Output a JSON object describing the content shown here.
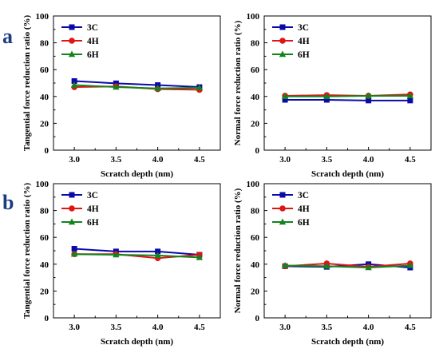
{
  "figure": {
    "rows": [
      {
        "label": "a"
      },
      {
        "label": "b"
      }
    ]
  },
  "chart_data": [
    {
      "type": "line",
      "panel": "a",
      "position": "left",
      "x": [
        3.0,
        3.5,
        4.0,
        4.5
      ],
      "x_ticks": [
        "3.0",
        "3.5",
        "4.0",
        "4.5"
      ],
      "y_ticks": [
        "0",
        "20",
        "40",
        "60",
        "80",
        "100"
      ],
      "xlim": [
        2.75,
        4.75
      ],
      "ylim": [
        0,
        100
      ],
      "xlabel": "Scratch depth (nm)",
      "ylabel": "Tangential force reduction ratio (%)",
      "legend_position": "top-left",
      "grid": false,
      "series": [
        {
          "name": "3C",
          "color": "#0a0aa8",
          "marker": "square",
          "values": [
            51.5,
            49.8,
            48.5,
            47.0
          ]
        },
        {
          "name": "4H",
          "color": "#e01414",
          "marker": "circle",
          "values": [
            47.0,
            47.5,
            45.5,
            45.0
          ]
        },
        {
          "name": "6H",
          "color": "#13841d",
          "marker": "triangle",
          "values": [
            48.5,
            47.0,
            46.0,
            46.5
          ]
        }
      ]
    },
    {
      "type": "line",
      "panel": "a",
      "position": "right",
      "x": [
        3.0,
        3.5,
        4.0,
        4.5
      ],
      "x_ticks": [
        "3.0",
        "3.5",
        "4.0",
        "4.5"
      ],
      "y_ticks": [
        "0",
        "20",
        "40",
        "60",
        "80",
        "100"
      ],
      "xlim": [
        2.75,
        4.75
      ],
      "ylim": [
        0,
        100
      ],
      "xlabel": "Scratch depth (nm)",
      "ylabel": "Normal force reduction ratio (%)",
      "legend_position": "top-left",
      "grid": false,
      "series": [
        {
          "name": "3C",
          "color": "#0a0aa8",
          "marker": "square",
          "values": [
            37.5,
            37.5,
            37.0,
            37.0
          ]
        },
        {
          "name": "4H",
          "color": "#e01414",
          "marker": "circle",
          "values": [
            40.5,
            41.0,
            40.5,
            41.5
          ]
        },
        {
          "name": "6H",
          "color": "#13841d",
          "marker": "triangle",
          "values": [
            40.0,
            40.0,
            40.5,
            40.5
          ]
        }
      ]
    },
    {
      "type": "line",
      "panel": "b",
      "position": "left",
      "x": [
        3.0,
        3.5,
        4.0,
        4.5
      ],
      "x_ticks": [
        "3.0",
        "3.5",
        "4.0",
        "4.5"
      ],
      "y_ticks": [
        "0",
        "20",
        "40",
        "60",
        "80",
        "100"
      ],
      "xlim": [
        2.75,
        4.75
      ],
      "ylim": [
        0,
        100
      ],
      "xlabel": "Scratch depth (nm)",
      "ylabel": "Tangential force reduction ratio (%)",
      "legend_position": "top-left",
      "grid": false,
      "series": [
        {
          "name": "3C",
          "color": "#0a0aa8",
          "marker": "square",
          "values": [
            51.5,
            49.5,
            49.5,
            47.0
          ]
        },
        {
          "name": "4H",
          "color": "#e01414",
          "marker": "circle",
          "values": [
            47.5,
            47.5,
            44.5,
            47.0
          ]
        },
        {
          "name": "6H",
          "color": "#13841d",
          "marker": "triangle",
          "values": [
            47.5,
            47.0,
            46.5,
            45.0
          ]
        }
      ]
    },
    {
      "type": "line",
      "panel": "b",
      "position": "right",
      "x": [
        3.0,
        3.5,
        4.0,
        4.5
      ],
      "x_ticks": [
        "3.0",
        "3.5",
        "4.0",
        "4.5"
      ],
      "y_ticks": [
        "0",
        "20",
        "40",
        "60",
        "80",
        "100"
      ],
      "xlim": [
        2.75,
        4.75
      ],
      "ylim": [
        0,
        100
      ],
      "xlabel": "Scratch depth (nm)",
      "ylabel": "Normal force reduction ratio (%)",
      "legend_position": "top-left",
      "grid": false,
      "series": [
        {
          "name": "3C",
          "color": "#0a0aa8",
          "marker": "square",
          "values": [
            38.5,
            38.0,
            40.0,
            37.5
          ]
        },
        {
          "name": "4H",
          "color": "#e01414",
          "marker": "circle",
          "values": [
            38.5,
            40.5,
            38.0,
            40.5
          ]
        },
        {
          "name": "6H",
          "color": "#13841d",
          "marker": "triangle",
          "values": [
            39.0,
            38.5,
            37.5,
            39.0
          ]
        }
      ]
    }
  ]
}
